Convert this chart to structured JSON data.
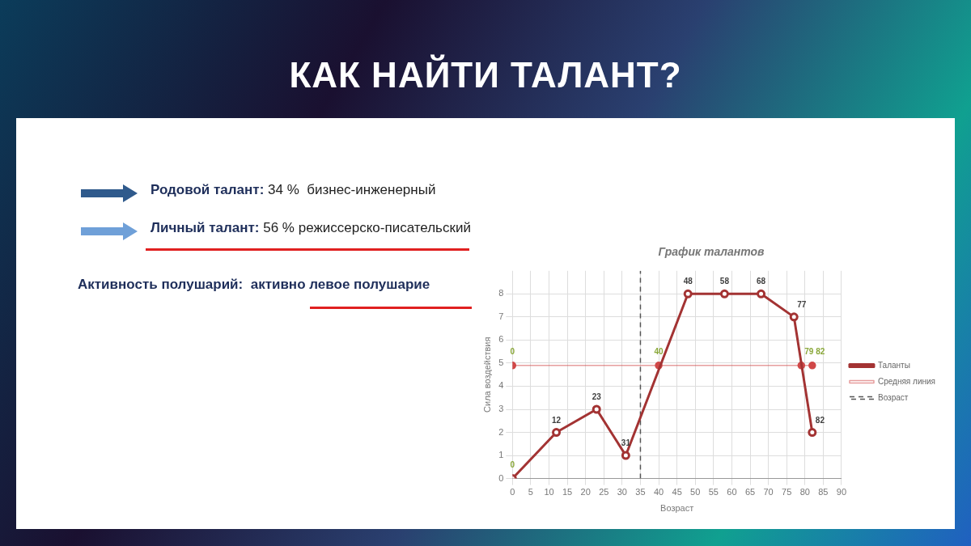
{
  "chart_data": {
    "type": "line",
    "title": "КАК НАЙТИ ТАЛАНТ?",
    "subtitle": "График талантов",
    "xlabel": "Возраст",
    "ylabel": "Сила воздействия",
    "annotations": [
      "Родовой талант: 34 %  бизнес-инженерный",
      "Личный талант: 56 % режиссерско-писательский",
      "Активность полушарий:  активно левое полушарие",
      {
        "text": "0",
        "x": 0,
        "y": 0
      },
      {
        "text": "12",
        "x": 12,
        "y": 2
      },
      {
        "text": "23",
        "x": 23,
        "y": 3
      },
      {
        "text": "31",
        "x": 31,
        "y": 1
      },
      {
        "text": "48",
        "x": 48,
        "y": 8
      },
      {
        "text": "58",
        "x": 58,
        "y": 8
      },
      {
        "text": "68",
        "x": 68,
        "y": 8
      },
      {
        "text": "77",
        "x": 77,
        "y": 7
      },
      {
        "text": "82",
        "x": 82,
        "y": 2
      },
      {
        "text": "0",
        "x": 0,
        "y": 4.9
      },
      {
        "text": "40",
        "x": 40,
        "y": 4.9
      },
      {
        "text": "79 82",
        "x": 79,
        "y": 4.9
      }
    ],
    "xlim": [
      0,
      90
    ],
    "xticks": [
      0,
      5,
      10,
      15,
      20,
      25,
      30,
      35,
      40,
      45,
      50,
      55,
      60,
      65,
      70,
      75,
      80,
      85,
      90
    ],
    "ylim": [
      0,
      9
    ],
    "yticks": [
      0,
      1,
      2,
      3,
      4,
      5,
      6,
      7,
      8
    ],
    "series": [
      {
        "name": "Таланты",
        "color": "#a33333",
        "x": [
          0,
          12,
          23,
          31,
          48,
          58,
          68,
          77,
          82
        ],
        "values": [
          0,
          2,
          3,
          1,
          8,
          8,
          8,
          7,
          2
        ]
      },
      {
        "name": "Средняя линия",
        "color": "#d04848",
        "x": [
          0,
          40,
          79,
          82
        ],
        "values": [
          4.9,
          4.9,
          4.9,
          4.9
        ]
      },
      {
        "name": "Возраст",
        "color": "#555555",
        "x": [
          35,
          35
        ],
        "values": [
          0,
          9
        ],
        "line_style": "dashed",
        "marker": "none"
      }
    ],
    "grid": true,
    "legend": "right",
    "marker": "circle",
    "line_style": "solid"
  }
}
